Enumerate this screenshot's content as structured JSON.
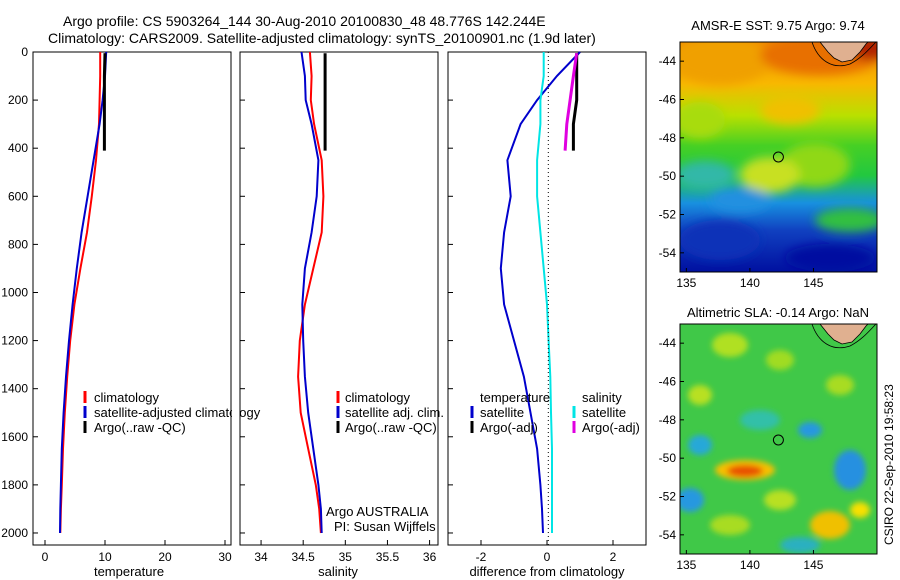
{
  "header": {
    "line1": "Argo profile: CS 5903264_144 30-Aug-2010 20100830_48 48.776S 142.244E",
    "line2": "Climatology: CARS2009. Satellite-adjusted climatology: synTS_20100901.nc (1.9d later)"
  },
  "footer": {
    "institution": "Argo AUSTRALIA",
    "pi": "PI: Susan Wijffels",
    "stamp": "CSIRO 22-Sep-2010 19:58:23"
  },
  "chart_data": [
    {
      "type": "line",
      "id": "temperature",
      "xlabel": "temperature",
      "ylabel": "",
      "xlim": [
        -2,
        31
      ],
      "ylim": [
        2050,
        0
      ],
      "xticks": [
        0,
        10,
        20,
        30
      ],
      "yticks": [
        0,
        200,
        400,
        600,
        800,
        1000,
        1200,
        1400,
        1600,
        1800,
        2000
      ],
      "legend": [
        "climatology",
        "satellite-adjusted climatology",
        "Argo(..raw -QC)"
      ],
      "series": [
        {
          "name": "climatology",
          "color": "#ff0000",
          "x": [
            9.2,
            9.2,
            9.1,
            9.0,
            8.5,
            7.8,
            7.0,
            5.9,
            4.9,
            4.2,
            3.7,
            3.3,
            3.0,
            2.8,
            2.65,
            2.55
          ],
          "y": [
            0,
            100,
            200,
            300,
            450,
            600,
            750,
            900,
            1050,
            1200,
            1350,
            1500,
            1650,
            1800,
            1900,
            2000
          ]
        },
        {
          "name": "satellite-adjusted climatology",
          "color": "#0000cc",
          "x": [
            10.2,
            10.0,
            9.6,
            9.1,
            8.1,
            7.1,
            6.1,
            5.3,
            4.6,
            4.0,
            3.5,
            3.1,
            2.8,
            2.65,
            2.55,
            2.5
          ],
          "y": [
            0,
            100,
            200,
            300,
            450,
            600,
            750,
            900,
            1050,
            1200,
            1350,
            1500,
            1650,
            1800,
            1900,
            2000
          ]
        },
        {
          "name": "Argo(..raw -QC)",
          "color": "#000000",
          "x": [
            10.0,
            9.9,
            9.9,
            9.9,
            9.9
          ],
          "y": [
            5,
            100,
            200,
            300,
            410
          ]
        }
      ]
    },
    {
      "type": "line",
      "id": "salinity",
      "xlabel": "salinity",
      "ylabel": "",
      "xlim": [
        33.75,
        36.1
      ],
      "ylim": [
        2050,
        0
      ],
      "xticks": [
        34,
        34.5,
        35,
        35.5,
        36
      ],
      "legend": [
        "climatology",
        "satellite adj. clim.",
        "Argo(..raw -QC)"
      ],
      "series": [
        {
          "name": "climatology",
          "color": "#ff0000",
          "x": [
            34.58,
            34.6,
            34.59,
            34.63,
            34.72,
            34.74,
            34.72,
            34.62,
            34.52,
            34.46,
            34.44,
            34.47,
            34.56,
            34.65,
            34.69,
            34.71
          ],
          "y": [
            0,
            100,
            200,
            300,
            450,
            600,
            750,
            900,
            1050,
            1200,
            1350,
            1500,
            1650,
            1800,
            1900,
            2000
          ]
        },
        {
          "name": "satellite adj. clim.",
          "color": "#0000cc",
          "x": [
            34.48,
            34.52,
            34.53,
            34.6,
            34.68,
            34.66,
            34.6,
            34.52,
            34.49,
            34.5,
            34.52,
            34.56,
            34.62,
            34.68,
            34.71,
            34.72
          ],
          "y": [
            0,
            100,
            200,
            300,
            450,
            600,
            750,
            900,
            1050,
            1200,
            1350,
            1500,
            1650,
            1800,
            1900,
            2000
          ]
        },
        {
          "name": "Argo(..raw -QC)",
          "color": "#000000",
          "x": [
            34.76,
            34.76,
            34.76,
            34.76,
            34.76
          ],
          "y": [
            5,
            100,
            200,
            300,
            410
          ]
        }
      ]
    },
    {
      "type": "line",
      "id": "difference",
      "xlabel": "difference from climatology",
      "ylabel": "",
      "xlim": [
        -3,
        3
      ],
      "ylim": [
        2050,
        0
      ],
      "xticks": [
        -2,
        0,
        2
      ],
      "legend_temperature_title": "temperature",
      "legend_salinity_title": "salinity",
      "legend_temperature": [
        "satellite",
        "Argo(-adj)"
      ],
      "legend_salinity": [
        "satellite",
        "Argo(-adj)"
      ],
      "series": [
        {
          "name": "temperature satellite",
          "color": "#0000cc",
          "x": [
            1.0,
            0.3,
            -0.3,
            -0.8,
            -1.2,
            -1.1,
            -1.3,
            -1.4,
            -1.3,
            -1.0,
            -0.7,
            -0.5,
            -0.3,
            -0.2,
            -0.15,
            -0.12
          ],
          "y": [
            0,
            100,
            200,
            300,
            450,
            600,
            750,
            900,
            1050,
            1200,
            1350,
            1500,
            1650,
            1800,
            1900,
            2000
          ]
        },
        {
          "name": "temperature Argo(-adj)",
          "color": "#000000",
          "x": [
            0.9,
            0.9,
            0.9,
            0.8,
            0.8
          ],
          "y": [
            5,
            100,
            200,
            300,
            410
          ]
        },
        {
          "name": "salinity satellite",
          "color": "#00e5e5",
          "x": [
            -0.1,
            -0.1,
            -0.2,
            -0.2,
            -0.3,
            -0.3,
            -0.2,
            -0.1,
            0.0,
            0.05,
            0.1,
            0.12,
            0.15,
            0.15,
            0.15,
            0.15
          ],
          "y": [
            0,
            100,
            200,
            300,
            450,
            600,
            750,
            900,
            1050,
            1200,
            1350,
            1500,
            1650,
            1800,
            1900,
            2000
          ]
        },
        {
          "name": "salinity Argo(-adj)",
          "color": "#e000e0",
          "x": [
            0.9,
            0.8,
            0.7,
            0.6,
            0.55
          ],
          "y": [
            5,
            100,
            200,
            300,
            410
          ]
        }
      ]
    },
    {
      "type": "heatmap",
      "id": "sst-map",
      "title": "AMSR-E SST: 9.75 Argo: 9.74",
      "xlim": [
        134.5,
        150
      ],
      "ylim": [
        -55,
        -43
      ],
      "xticks": [
        135,
        140,
        145
      ],
      "yticks": [
        -44,
        -46,
        -48,
        -50,
        -52,
        -54
      ],
      "marker": {
        "lon": 142.244,
        "lat": -48.776
      },
      "colorscale": "jet"
    },
    {
      "type": "heatmap",
      "id": "sla-map",
      "title": "Altimetric SLA: -0.14 Argo: NaN",
      "xlim": [
        134.5,
        150
      ],
      "ylim": [
        -55,
        -43
      ],
      "xticks": [
        135,
        140,
        145
      ],
      "yticks": [
        -44,
        -46,
        -48,
        -50,
        -52,
        -54
      ],
      "marker": {
        "lon": 142.244,
        "lat": -48.776
      },
      "colorscale": "jet"
    }
  ]
}
